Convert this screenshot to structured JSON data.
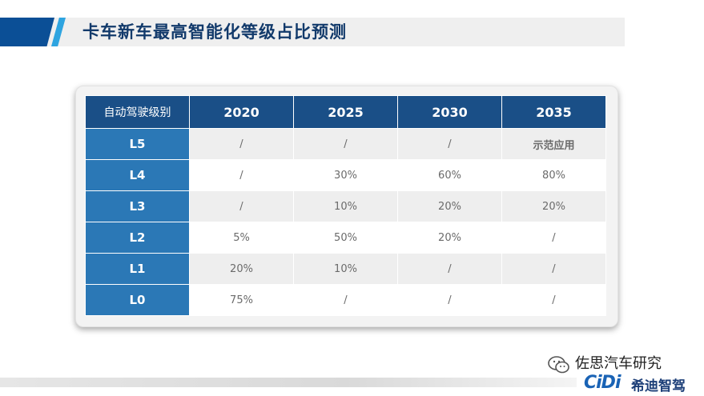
{
  "slide": {
    "title": "卡车新车最高智能化等级占比预测"
  },
  "table": {
    "header": [
      "自动驾驶级别",
      "2020",
      "2025",
      "2030",
      "2035"
    ],
    "rows": [
      {
        "level": "L5",
        "cells": [
          "/",
          "/",
          "/",
          "示范应用"
        ]
      },
      {
        "level": "L4",
        "cells": [
          "/",
          "30%",
          "60%",
          "80%"
        ]
      },
      {
        "level": "L3",
        "cells": [
          "/",
          "10%",
          "20%",
          "20%"
        ]
      },
      {
        "level": "L2",
        "cells": [
          "5%",
          "50%",
          "20%",
          "/"
        ]
      },
      {
        "level": "L1",
        "cells": [
          "20%",
          "10%",
          "/",
          "/"
        ]
      },
      {
        "level": "L0",
        "cells": [
          "75%",
          "/",
          "/",
          "/"
        ]
      }
    ]
  },
  "watermark": {
    "text": "佐思汽车研究",
    "icon": "chat-bubble-icon"
  },
  "logo": {
    "mark": "CiDi",
    "name": "希迪智驾"
  },
  "colors": {
    "header_bg": "#1a4f87",
    "level_bg": "#2b78b6",
    "title_color": "#123a6b",
    "accent_dark": "#0b4f96",
    "accent_light": "#2ea4e0"
  }
}
